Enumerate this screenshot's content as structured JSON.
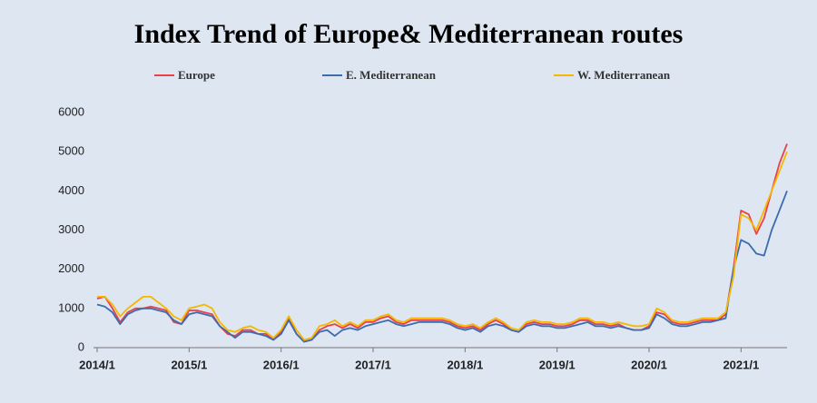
{
  "chart_data": {
    "type": "line",
    "title": "Index Trend of Europe& Mediterranean routes",
    "categories": [
      "2014/1",
      null,
      null,
      null,
      null,
      null,
      null,
      null,
      null,
      null,
      null,
      null,
      "2015/1",
      null,
      null,
      null,
      null,
      null,
      null,
      null,
      null,
      null,
      null,
      null,
      "2016/1",
      null,
      null,
      null,
      null,
      null,
      null,
      null,
      null,
      null,
      null,
      null,
      "2017/1",
      null,
      null,
      null,
      null,
      null,
      null,
      null,
      null,
      null,
      null,
      null,
      "2018/1",
      null,
      null,
      null,
      null,
      null,
      null,
      null,
      null,
      null,
      null,
      null,
      "2019/1",
      null,
      null,
      null,
      null,
      null,
      null,
      null,
      null,
      null,
      null,
      null,
      "2020/1",
      null,
      null,
      null,
      null,
      null,
      null,
      null,
      null,
      null,
      null,
      null,
      "2021/1",
      null,
      null,
      null,
      null,
      null,
      null
    ],
    "series": [
      {
        "name": "Europe",
        "color": "#e8414a",
        "values": [
          1250,
          1300,
          1000,
          650,
          900,
          1000,
          1000,
          1050,
          1000,
          950,
          650,
          600,
          950,
          950,
          900,
          850,
          550,
          350,
          300,
          450,
          450,
          350,
          350,
          200,
          400,
          750,
          350,
          150,
          200,
          450,
          550,
          600,
          500,
          600,
          500,
          650,
          650,
          750,
          800,
          650,
          600,
          700,
          700,
          700,
          700,
          700,
          650,
          550,
          500,
          550,
          450,
          600,
          700,
          600,
          450,
          400,
          600,
          650,
          600,
          600,
          550,
          550,
          600,
          700,
          700,
          600,
          600,
          550,
          600,
          500,
          450,
          450,
          550,
          900,
          850,
          650,
          600,
          600,
          650,
          700,
          700,
          700,
          850,
          2000,
          3500,
          3400,
          2900,
          3300,
          4000,
          4700,
          5200
        ]
      },
      {
        "name": "E. Mediterranean",
        "color": "#3d6bb0",
        "values": [
          1100,
          1050,
          900,
          600,
          850,
          950,
          1000,
          1000,
          950,
          900,
          700,
          600,
          850,
          900,
          850,
          800,
          550,
          400,
          250,
          400,
          400,
          350,
          300,
          200,
          350,
          700,
          350,
          150,
          200,
          400,
          450,
          300,
          450,
          500,
          450,
          550,
          600,
          650,
          700,
          600,
          550,
          600,
          650,
          650,
          650,
          650,
          600,
          500,
          450,
          500,
          400,
          550,
          600,
          550,
          450,
          400,
          550,
          600,
          550,
          550,
          500,
          500,
          550,
          600,
          650,
          550,
          550,
          500,
          550,
          500,
          450,
          450,
          500,
          850,
          750,
          600,
          550,
          550,
          600,
          650,
          650,
          700,
          750,
          2000,
          2750,
          2650,
          2400,
          2350,
          3000,
          3500,
          4000
        ]
      },
      {
        "name": "W. Mediterranean",
        "color": "#f5b800",
        "values": [
          1300,
          1300,
          1100,
          800,
          1000,
          1150,
          1300,
          1300,
          1150,
          1000,
          800,
          700,
          1000,
          1050,
          1100,
          1000,
          650,
          450,
          400,
          500,
          550,
          450,
          400,
          250,
          450,
          800,
          450,
          200,
          250,
          550,
          600,
          700,
          550,
          650,
          550,
          700,
          700,
          800,
          850,
          700,
          650,
          750,
          750,
          750,
          750,
          750,
          700,
          600,
          550,
          600,
          500,
          650,
          750,
          650,
          500,
          450,
          650,
          700,
          650,
          650,
          600,
          600,
          650,
          750,
          750,
          650,
          650,
          600,
          650,
          600,
          550,
          550,
          600,
          1000,
          900,
          700,
          650,
          650,
          700,
          750,
          750,
          750,
          900,
          1800,
          3400,
          3300,
          3000,
          3500,
          4000,
          4500,
          5000
        ]
      }
    ],
    "ylim": [
      0,
      6000
    ],
    "yticks": [
      0,
      1000,
      2000,
      3000,
      4000,
      5000,
      6000
    ],
    "grid": false,
    "legend": "top"
  }
}
